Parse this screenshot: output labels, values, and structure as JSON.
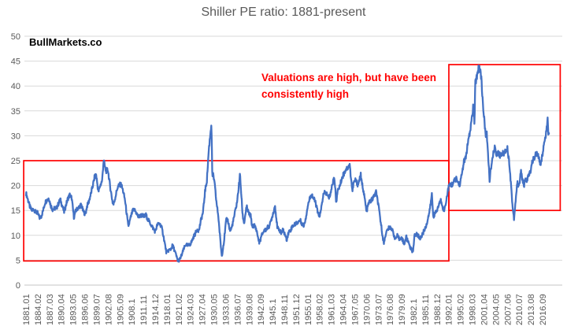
{
  "title": "Shiller PE ratio: 1881-present",
  "watermark": "BullMarkets.co",
  "annotation": {
    "line1": "Valuations are high, but have been",
    "line2": "consistently high",
    "color": "#ff0000"
  },
  "chart_data": {
    "type": "line",
    "title": "Shiller PE ratio: 1881-present",
    "xlabel": "",
    "ylabel": "",
    "ylim": [
      0,
      50
    ],
    "y_ticks": [
      0,
      5,
      10,
      15,
      20,
      25,
      30,
      35,
      40,
      45,
      50
    ],
    "grid": true,
    "legend": false,
    "line_color": "#4472C4",
    "gridline_color": "#D9D9D9",
    "axis_line_color": "#C6C6C6",
    "label_color": "#595959",
    "highlight_color": "#FF0000",
    "x_tick_labels": [
      "1881.01",
      "1884.02",
      "1887.03",
      "1890.04",
      "1893.05",
      "1896.06",
      "1899.07",
      "1902.08",
      "1905.09",
      "1908.1",
      "1911.11",
      "1914.12",
      "1918.01",
      "1921.02",
      "1924.03",
      "1927.04",
      "1930.05",
      "1933.06",
      "1936.07",
      "1939.08",
      "1942.09",
      "1945.1",
      "1948.11",
      "1951.12",
      "1955.01",
      "1958.02",
      "1961.03",
      "1964.04",
      "1967.05",
      "1970.06",
      "1973.07",
      "1976.08",
      "1979.09",
      "1982.1",
      "1985.11",
      "1988.12",
      "1992.01",
      "1995.02",
      "1998.03",
      "2001.04",
      "2004.05",
      "2007.06",
      "2010.07",
      "2013.08",
      "2016.09"
    ],
    "x_range_years": [
      1881.0,
      2018.33
    ],
    "series": [
      {
        "name": "Shiller PE ratio",
        "points": [
          [
            1881.0,
            18.5
          ],
          [
            1881.5,
            17.2
          ],
          [
            1882.0,
            15.8
          ],
          [
            1882.5,
            15.0
          ],
          [
            1883.0,
            15.3
          ],
          [
            1883.5,
            14.7
          ],
          [
            1884.0,
            14.5
          ],
          [
            1884.6,
            13.5
          ],
          [
            1885.0,
            13.8
          ],
          [
            1885.5,
            15.0
          ],
          [
            1886.0,
            16.6
          ],
          [
            1886.5,
            17.1
          ],
          [
            1887.0,
            17.5
          ],
          [
            1887.5,
            16.0
          ],
          [
            1888.0,
            15.2
          ],
          [
            1888.5,
            15.4
          ],
          [
            1889.0,
            15.5
          ],
          [
            1889.5,
            16.3
          ],
          [
            1890.0,
            17.2
          ],
          [
            1890.6,
            15.8
          ],
          [
            1891.0,
            14.7
          ],
          [
            1891.5,
            16.1
          ],
          [
            1892.0,
            17.4
          ],
          [
            1892.5,
            18.1
          ],
          [
            1893.0,
            17.5
          ],
          [
            1893.6,
            13.6
          ],
          [
            1894.0,
            14.8
          ],
          [
            1894.5,
            15.4
          ],
          [
            1895.0,
            15.7
          ],
          [
            1895.5,
            16.2
          ],
          [
            1896.0,
            14.9
          ],
          [
            1896.6,
            14.2
          ],
          [
            1897.0,
            15.8
          ],
          [
            1897.5,
            16.8
          ],
          [
            1898.0,
            18.2
          ],
          [
            1898.5,
            19.8
          ],
          [
            1899.0,
            21.6
          ],
          [
            1899.4,
            22.3
          ],
          [
            1900.0,
            18.7
          ],
          [
            1900.5,
            20.0
          ],
          [
            1901.0,
            21.0
          ],
          [
            1901.4,
            25.2
          ],
          [
            1901.8,
            23.5
          ],
          [
            1902.0,
            22.9
          ],
          [
            1902.5,
            23.2
          ],
          [
            1903.0,
            20.3
          ],
          [
            1903.8,
            16.4
          ],
          [
            1904.0,
            16.2
          ],
          [
            1904.6,
            18.1
          ],
          [
            1905.0,
            19.5
          ],
          [
            1905.5,
            20.1
          ],
          [
            1906.0,
            20.2
          ],
          [
            1906.5,
            18.9
          ],
          [
            1907.0,
            17.1
          ],
          [
            1907.85,
            11.9
          ],
          [
            1908.0,
            12.1
          ],
          [
            1908.5,
            13.6
          ],
          [
            1909.0,
            14.9
          ],
          [
            1909.5,
            15.1
          ],
          [
            1910.0,
            14.5
          ],
          [
            1910.5,
            13.7
          ],
          [
            1911.0,
            13.9
          ],
          [
            1911.5,
            14.1
          ],
          [
            1912.0,
            13.7
          ],
          [
            1912.5,
            14.1
          ],
          [
            1913.0,
            13.2
          ],
          [
            1913.5,
            12.6
          ],
          [
            1914.0,
            11.9
          ],
          [
            1914.9,
            10.8
          ],
          [
            1915.0,
            10.9
          ],
          [
            1915.5,
            12.1
          ],
          [
            1916.0,
            12.4
          ],
          [
            1916.5,
            11.9
          ],
          [
            1917.0,
            10.3
          ],
          [
            1917.9,
            6.4
          ],
          [
            1918.3,
            6.9
          ],
          [
            1919.0,
            7.2
          ],
          [
            1919.5,
            8.0
          ],
          [
            1920.0,
            7.0
          ],
          [
            1920.92,
            4.78
          ],
          [
            1921.5,
            5.3
          ],
          [
            1922.0,
            6.3
          ],
          [
            1922.5,
            7.4
          ],
          [
            1923.0,
            8.2
          ],
          [
            1923.5,
            7.9
          ],
          [
            1924.0,
            8.1
          ],
          [
            1924.5,
            8.7
          ],
          [
            1925.0,
            9.7
          ],
          [
            1925.5,
            10.4
          ],
          [
            1926.0,
            11.3
          ],
          [
            1926.4,
            10.9
          ],
          [
            1927.0,
            13.2
          ],
          [
            1927.5,
            14.6
          ],
          [
            1928.0,
            18.8
          ],
          [
            1928.5,
            21.0
          ],
          [
            1929.0,
            27.1
          ],
          [
            1929.7,
            32.6
          ],
          [
            1929.95,
            21.5
          ],
          [
            1930.2,
            22.3
          ],
          [
            1930.6,
            19.8
          ],
          [
            1931.0,
            16.7
          ],
          [
            1931.5,
            13.9
          ],
          [
            1932.0,
            9.3
          ],
          [
            1932.45,
            5.6
          ],
          [
            1932.7,
            7.4
          ],
          [
            1933.0,
            8.7
          ],
          [
            1933.55,
            13.1
          ],
          [
            1934.0,
            13.0
          ],
          [
            1934.6,
            10.9
          ],
          [
            1935.0,
            11.5
          ],
          [
            1935.5,
            13.1
          ],
          [
            1936.0,
            15.0
          ],
          [
            1936.5,
            17.1
          ],
          [
            1937.2,
            22.2
          ],
          [
            1937.9,
            14.0
          ],
          [
            1938.3,
            12.4
          ],
          [
            1938.8,
            15.2
          ],
          [
            1939.0,
            15.6
          ],
          [
            1939.5,
            14.4
          ],
          [
            1940.0,
            13.9
          ],
          [
            1940.4,
            11.8
          ],
          [
            1941.0,
            12.0
          ],
          [
            1941.5,
            11.2
          ],
          [
            1942.0,
            9.3
          ],
          [
            1942.3,
            8.5
          ],
          [
            1943.0,
            10.2
          ],
          [
            1943.5,
            10.9
          ],
          [
            1944.0,
            11.1
          ],
          [
            1944.5,
            11.6
          ],
          [
            1945.0,
            12.0
          ],
          [
            1945.5,
            13.4
          ],
          [
            1946.0,
            14.7
          ],
          [
            1946.4,
            16.0
          ],
          [
            1946.9,
            12.4
          ],
          [
            1947.0,
            11.5
          ],
          [
            1947.5,
            11.2
          ],
          [
            1948.0,
            10.4
          ],
          [
            1948.5,
            11.1
          ],
          [
            1949.0,
            10.2
          ],
          [
            1949.45,
            9.1
          ],
          [
            1950.0,
            10.7
          ],
          [
            1950.5,
            11.1
          ],
          [
            1951.0,
            11.9
          ],
          [
            1951.5,
            12.1
          ],
          [
            1952.0,
            12.5
          ],
          [
            1952.5,
            12.7
          ],
          [
            1953.0,
            13.0
          ],
          [
            1953.6,
            12.2
          ],
          [
            1954.0,
            12.0
          ],
          [
            1954.5,
            13.6
          ],
          [
            1955.0,
            16.0
          ],
          [
            1955.5,
            17.3
          ],
          [
            1956.0,
            18.3
          ],
          [
            1956.5,
            17.4
          ],
          [
            1957.0,
            16.7
          ],
          [
            1957.9,
            13.7
          ],
          [
            1958.4,
            14.6
          ],
          [
            1959.0,
            17.9
          ],
          [
            1959.5,
            18.6
          ],
          [
            1960.0,
            18.3
          ],
          [
            1960.5,
            17.4
          ],
          [
            1961.0,
            18.5
          ],
          [
            1961.95,
            22.0
          ],
          [
            1962.45,
            16.8
          ],
          [
            1963.0,
            19.3
          ],
          [
            1963.5,
            20.1
          ],
          [
            1964.0,
            21.6
          ],
          [
            1964.5,
            22.4
          ],
          [
            1965.0,
            23.3
          ],
          [
            1965.5,
            23.6
          ],
          [
            1966.0,
            24.1
          ],
          [
            1966.75,
            18.8
          ],
          [
            1967.0,
            20.4
          ],
          [
            1967.5,
            21.1
          ],
          [
            1968.2,
            20.1
          ],
          [
            1968.9,
            22.3
          ],
          [
            1969.0,
            21.2
          ],
          [
            1969.5,
            19.6
          ],
          [
            1970.0,
            17.1
          ],
          [
            1970.4,
            14.7
          ],
          [
            1971.0,
            16.5
          ],
          [
            1971.5,
            16.9
          ],
          [
            1972.0,
            17.3
          ],
          [
            1972.95,
            18.7
          ],
          [
            1973.5,
            16.2
          ],
          [
            1974.0,
            13.5
          ],
          [
            1974.95,
            8.3
          ],
          [
            1975.5,
            10.4
          ],
          [
            1976.0,
            11.2
          ],
          [
            1976.5,
            11.6
          ],
          [
            1977.0,
            11.4
          ],
          [
            1977.5,
            10.4
          ],
          [
            1978.0,
            9.2
          ],
          [
            1978.5,
            9.9
          ],
          [
            1979.0,
            9.3
          ],
          [
            1979.5,
            9.6
          ],
          [
            1980.0,
            8.9
          ],
          [
            1980.3,
            8.2
          ],
          [
            1980.9,
            9.8
          ],
          [
            1981.0,
            9.2
          ],
          [
            1981.5,
            8.6
          ],
          [
            1982.0,
            7.4
          ],
          [
            1982.6,
            6.64
          ],
          [
            1983.0,
            9.8
          ],
          [
            1983.5,
            10.3
          ],
          [
            1984.0,
            9.9
          ],
          [
            1984.5,
            9.4
          ],
          [
            1985.0,
            10.0
          ],
          [
            1985.5,
            10.9
          ],
          [
            1986.0,
            11.7
          ],
          [
            1986.5,
            13.1
          ],
          [
            1987.0,
            14.9
          ],
          [
            1987.6,
            18.3
          ],
          [
            1987.95,
            13.6
          ],
          [
            1988.0,
            13.9
          ],
          [
            1988.5,
            14.4
          ],
          [
            1989.0,
            15.1
          ],
          [
            1989.5,
            16.3
          ],
          [
            1990.0,
            17.1
          ],
          [
            1990.75,
            14.8
          ],
          [
            1991.0,
            15.6
          ],
          [
            1991.5,
            17.6
          ],
          [
            1992.0,
            19.8
          ],
          [
            1992.5,
            20.1
          ],
          [
            1993.0,
            20.3
          ],
          [
            1993.5,
            20.9
          ],
          [
            1994.0,
            21.4
          ],
          [
            1994.6,
            20.4
          ],
          [
            1995.0,
            20.2
          ],
          [
            1995.5,
            22.6
          ],
          [
            1996.0,
            24.8
          ],
          [
            1996.5,
            25.6
          ],
          [
            1997.0,
            28.3
          ],
          [
            1997.5,
            30.2
          ],
          [
            1998.0,
            32.9
          ],
          [
            1998.55,
            36.5
          ],
          [
            1998.75,
            32.0
          ],
          [
            1999.0,
            40.6
          ],
          [
            1999.5,
            42.3
          ],
          [
            1999.95,
            44.2
          ],
          [
            2000.25,
            43.2
          ],
          [
            2000.6,
            41.7
          ],
          [
            2001.0,
            36.0
          ],
          [
            2001.75,
            30.0
          ],
          [
            2002.0,
            30.3
          ],
          [
            2002.75,
            21.2
          ],
          [
            2003.0,
            22.9
          ],
          [
            2003.5,
            25.1
          ],
          [
            2004.0,
            27.7
          ],
          [
            2004.5,
            26.4
          ],
          [
            2005.0,
            26.6
          ],
          [
            2005.5,
            26.1
          ],
          [
            2006.0,
            26.5
          ],
          [
            2006.5,
            26.4
          ],
          [
            2007.0,
            27.2
          ],
          [
            2007.4,
            27.6
          ],
          [
            2008.0,
            24.0
          ],
          [
            2008.85,
            15.2
          ],
          [
            2009.2,
            13.3
          ],
          [
            2009.5,
            16.4
          ],
          [
            2010.0,
            20.5
          ],
          [
            2010.5,
            19.9
          ],
          [
            2011.0,
            22.9
          ],
          [
            2011.75,
            19.7
          ],
          [
            2012.0,
            21.2
          ],
          [
            2012.5,
            21.1
          ],
          [
            2013.0,
            21.9
          ],
          [
            2013.5,
            23.0
          ],
          [
            2014.0,
            24.9
          ],
          [
            2014.5,
            25.6
          ],
          [
            2015.0,
            26.5
          ],
          [
            2015.6,
            25.7
          ],
          [
            2016.1,
            24.2
          ],
          [
            2016.5,
            25.7
          ],
          [
            2017.0,
            28.1
          ],
          [
            2017.5,
            30.2
          ],
          [
            2018.04,
            33.3
          ],
          [
            2018.15,
            30.6
          ],
          [
            2018.3,
            31.0
          ]
        ]
      }
    ],
    "annotations": {
      "text": "Valuations are high, but have been consistently high",
      "boxes": [
        {
          "label": "historical-range-box",
          "x1": 1880.4,
          "x2": 1992.05,
          "y1": 4.85,
          "y2": 25.0
        },
        {
          "label": "modern-range-box",
          "x1": 1992.05,
          "x2": 2021.3,
          "y1": 15.0,
          "y2": 44.3
        }
      ]
    }
  }
}
